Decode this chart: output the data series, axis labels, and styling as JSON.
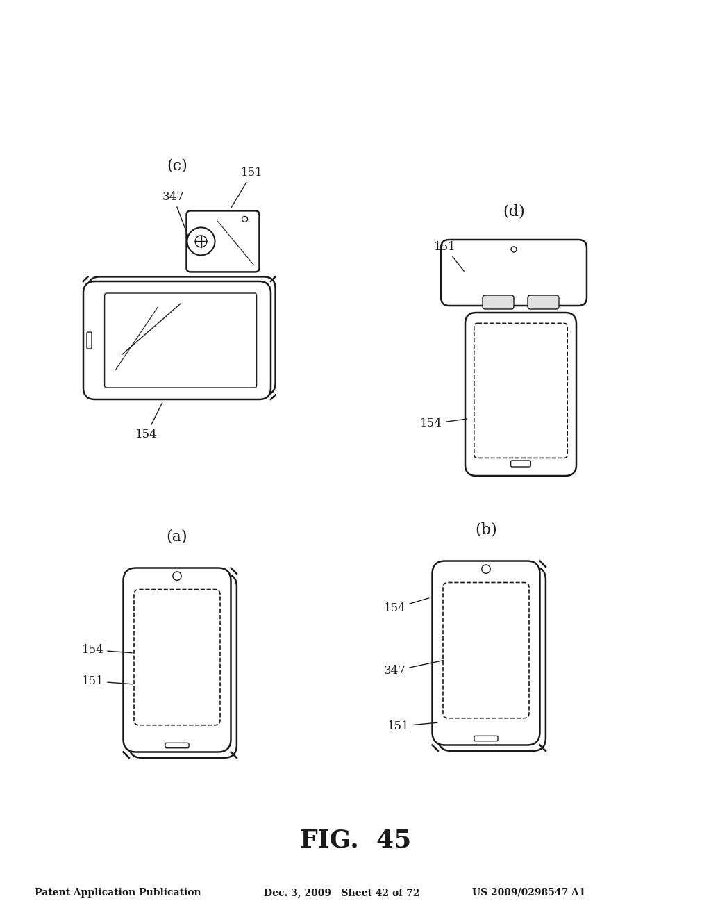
{
  "header_left": "Patent Application Publication",
  "header_mid": "Dec. 3, 2009   Sheet 42 of 72",
  "header_right": "US 2009/0298547 A1",
  "fig_title": "FIG.  45",
  "bg_color": "#ffffff",
  "line_color": "#1a1a1a",
  "label_color": "#1a1a1a",
  "sub_labels": [
    "(a)",
    "(b)",
    "(c)",
    "(d)"
  ],
  "ref_nums": [
    "154",
    "151",
    "347"
  ]
}
